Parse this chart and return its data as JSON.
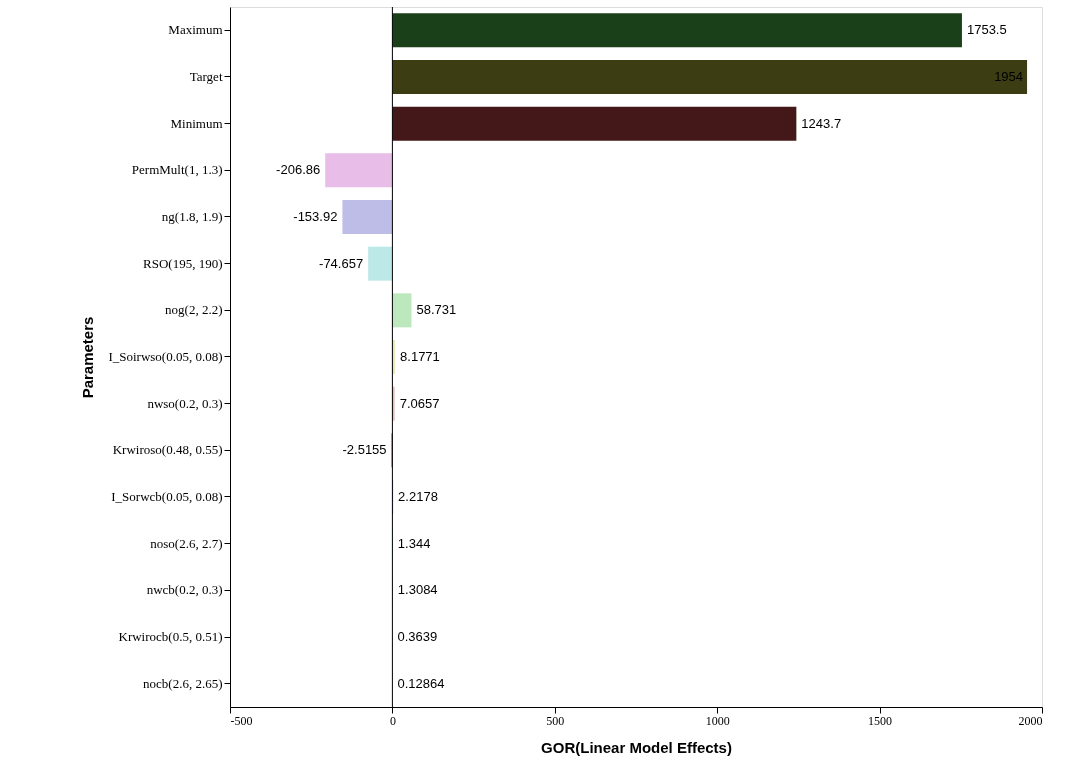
{
  "chart_data": {
    "type": "bar",
    "orientation": "horizontal",
    "xlabel": "GOR(Linear Model Effects)",
    "ylabel": "Parameters",
    "categories": [
      "Maximum",
      "Target",
      "Minimum",
      "PermMult(1, 1.3)",
      "ng(1.8, 1.9)",
      "RSO(195, 190)",
      "nog(2, 2.2)",
      "I_Soirwso(0.05, 0.08)",
      "nwso(0.2, 0.3)",
      "Krwiroso(0.48, 0.55)",
      "I_Sorwcb(0.05, 0.08)",
      "noso(2.6, 2.7)",
      "nwcb(0.2, 0.3)",
      "Krwirocb(0.5, 0.51)",
      "nocb(2.6, 2.65)"
    ],
    "values": [
      1753.5,
      1954,
      1243.7,
      -206.86,
      -153.92,
      -74.657,
      58.731,
      8.1771,
      7.0657,
      -2.5155,
      2.2178,
      1.344,
      1.3084,
      0.3639,
      0.12864
    ],
    "colors": [
      "#1a4019",
      "#3d3d14",
      "#441818",
      "#e8bde8",
      "#bdbde8",
      "#bde8e8",
      "#bde8bd",
      "#e8e8bd",
      "#e8bdbd",
      "#800080",
      "#8080e0",
      "#80d8d8",
      "#80d880",
      "#d8d880",
      "#d88080"
    ],
    "xlim": [
      -500,
      2000
    ],
    "xticks": [
      -500,
      0,
      500,
      1000,
      1500,
      2000
    ],
    "ref_lines": [
      {
        "axis": "x",
        "value": 0,
        "color": "#000000"
      }
    ],
    "data_labels": true,
    "grid": false
  }
}
